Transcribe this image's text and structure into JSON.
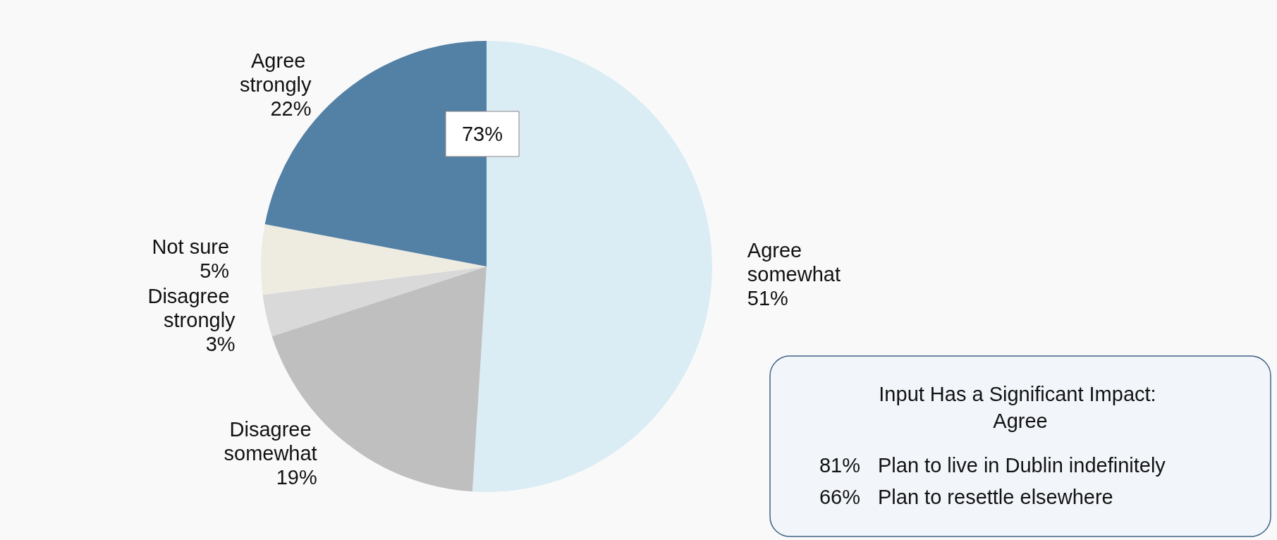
{
  "chart_data": {
    "type": "pie",
    "categories": [
      "Agree somewhat",
      "Disagree somewhat",
      "Disagree strongly",
      "Not sure",
      "Agree strongly"
    ],
    "values": [
      51,
      19,
      3,
      5,
      22
    ],
    "colors": [
      "#daedf4",
      "#bfbfbf",
      "#d9d9d9",
      "#eeece1",
      "#5380a5"
    ],
    "value_labels": [
      "51%",
      "19%",
      "3%",
      "5%",
      "22%"
    ],
    "legend": false,
    "annotations": [
      "73%",
      "Input Has a Significant Impact: Agree",
      "81%",
      "Plan to live in Dublin indefinitely",
      "66%",
      "Plan to resettle elsewhere"
    ]
  }
}
